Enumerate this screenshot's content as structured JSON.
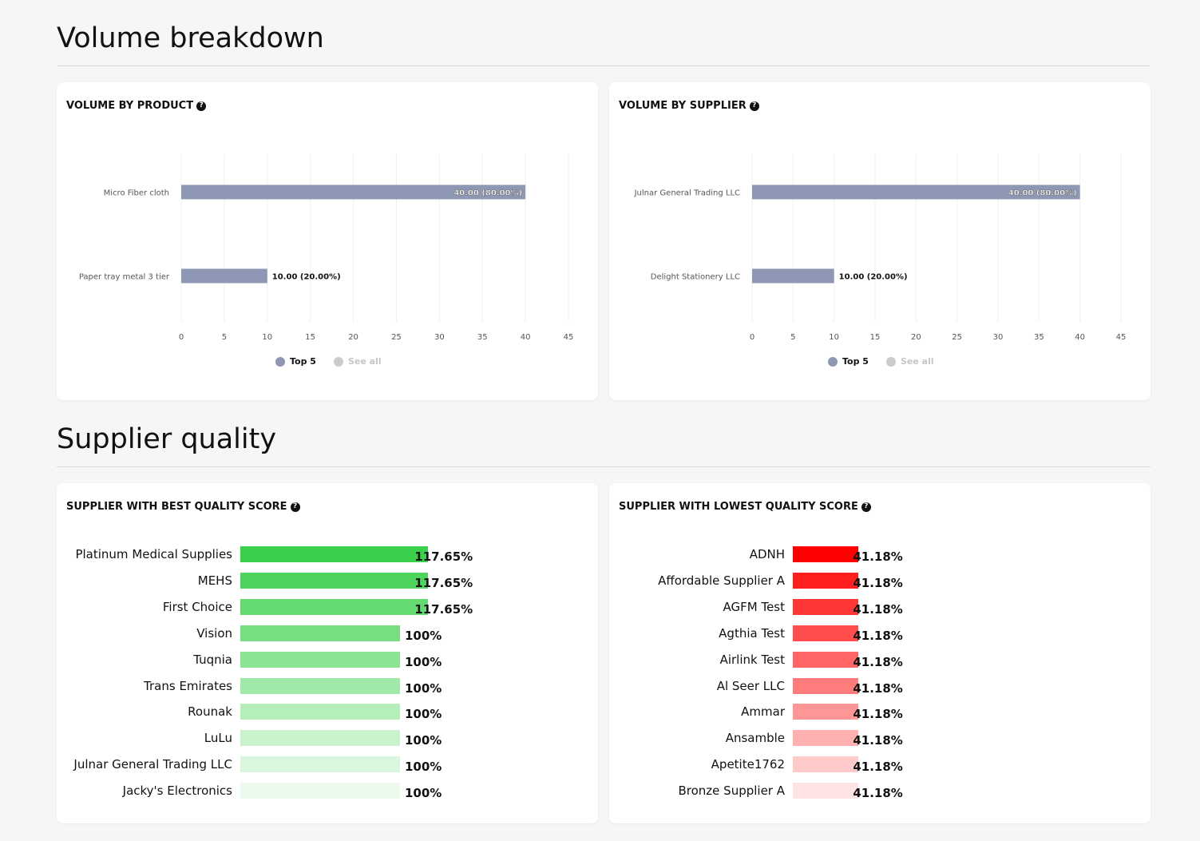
{
  "volume_section": {
    "title": "Volume breakdown"
  },
  "quality_section": {
    "title": "Supplier quality"
  },
  "legend": {
    "top5": "Top 5",
    "see_all": "See all",
    "top5_color": "#8e97b3",
    "see_all_color": "#cccccc"
  },
  "volume_by_product": {
    "title": "VOLUME BY PRODUCT",
    "help_icon": "question-circle-icon"
  },
  "volume_by_supplier": {
    "title": "VOLUME BY SUPPLIER",
    "help_icon": "question-circle-icon"
  },
  "best_quality": {
    "title": "SUPPLIER WITH BEST QUALITY SCORE",
    "rows": [
      {
        "name": "Platinum Medical Supplies",
        "value": 117.65,
        "label": "117.65%",
        "color": "#3bd04b"
      },
      {
        "name": "MEHS",
        "value": 117.65,
        "label": "117.65%",
        "color": "#4ed45c"
      },
      {
        "name": "First Choice",
        "value": 117.65,
        "label": "117.65%",
        "color": "#66da72"
      },
      {
        "name": "Vision",
        "value": 100,
        "label": "100%",
        "color": "#77df82"
      },
      {
        "name": "Tuqnia",
        "value": 100,
        "label": "100%",
        "color": "#8ae393"
      },
      {
        "name": "Trans Emirates",
        "value": 100,
        "label": "100%",
        "color": "#a1e9a8"
      },
      {
        "name": "Rounak",
        "value": 100,
        "label": "100%",
        "color": "#b4eeb9"
      },
      {
        "name": "LuLu",
        "value": 100,
        "label": "100%",
        "color": "#c8f3cc"
      },
      {
        "name": "Julnar General Trading LLC",
        "value": 100,
        "label": "100%",
        "color": "#daf6dc"
      },
      {
        "name": "Jacky's Electronics",
        "value": 100,
        "label": "100%",
        "color": "#ebfaec"
      }
    ]
  },
  "lowest_quality": {
    "title": "SUPPLIER WITH LOWEST QUALITY SCORE",
    "rows": [
      {
        "name": "ADNH",
        "value": 41.18,
        "label": "41.18%",
        "color": "#ff0000"
      },
      {
        "name": "Affordable Supplier A",
        "value": 41.18,
        "label": "41.18%",
        "color": "#ff1f1f"
      },
      {
        "name": "AGFM Test",
        "value": 41.18,
        "label": "41.18%",
        "color": "#ff3636"
      },
      {
        "name": "Agthia Test",
        "value": 41.18,
        "label": "41.18%",
        "color": "#ff4d4d"
      },
      {
        "name": "Airlink Test",
        "value": 41.18,
        "label": "41.18%",
        "color": "#ff6565"
      },
      {
        "name": "Al Seer LLC",
        "value": 41.18,
        "label": "41.18%",
        "color": "#ff7c7c"
      },
      {
        "name": "Ammar",
        "value": 41.18,
        "label": "41.18%",
        "color": "#ff9696"
      },
      {
        "name": "Ansamble",
        "value": 41.18,
        "label": "41.18%",
        "color": "#ffb0b0"
      },
      {
        "name": "Apetite1762",
        "value": 41.18,
        "label": "41.18%",
        "color": "#ffcaca"
      },
      {
        "name": "Bronze Supplier A",
        "value": 41.18,
        "label": "41.18%",
        "color": "#ffe2e2"
      }
    ]
  },
  "chart_data": [
    {
      "type": "bar",
      "orientation": "horizontal",
      "title": "VOLUME BY PRODUCT",
      "categories": [
        "Micro Fiber cloth",
        "Paper tray metal 3 tier"
      ],
      "series": [
        {
          "name": "Top 5",
          "values": [
            40,
            10
          ],
          "labels": [
            "40.00 (80.00%)",
            "10.00 (20.00%)"
          ]
        }
      ],
      "x_ticks": [
        0,
        5,
        10,
        15,
        20,
        25,
        30,
        35,
        40,
        45
      ],
      "xlim": [
        0,
        45
      ],
      "grid": true,
      "legend_placement": "bottom-center",
      "color": "#8e97b3"
    },
    {
      "type": "bar",
      "orientation": "horizontal",
      "title": "VOLUME BY SUPPLIER",
      "categories": [
        "Julnar General Trading LLC",
        "Delight Stationery LLC"
      ],
      "series": [
        {
          "name": "Top 5",
          "values": [
            40,
            10
          ],
          "labels": [
            "40.00 (80.00%)",
            "10.00 (20.00%)"
          ]
        }
      ],
      "x_ticks": [
        0,
        5,
        10,
        15,
        20,
        25,
        30,
        35,
        40,
        45
      ],
      "xlim": [
        0,
        45
      ],
      "grid": true,
      "legend_placement": "bottom-center",
      "color": "#8e97b3"
    }
  ]
}
